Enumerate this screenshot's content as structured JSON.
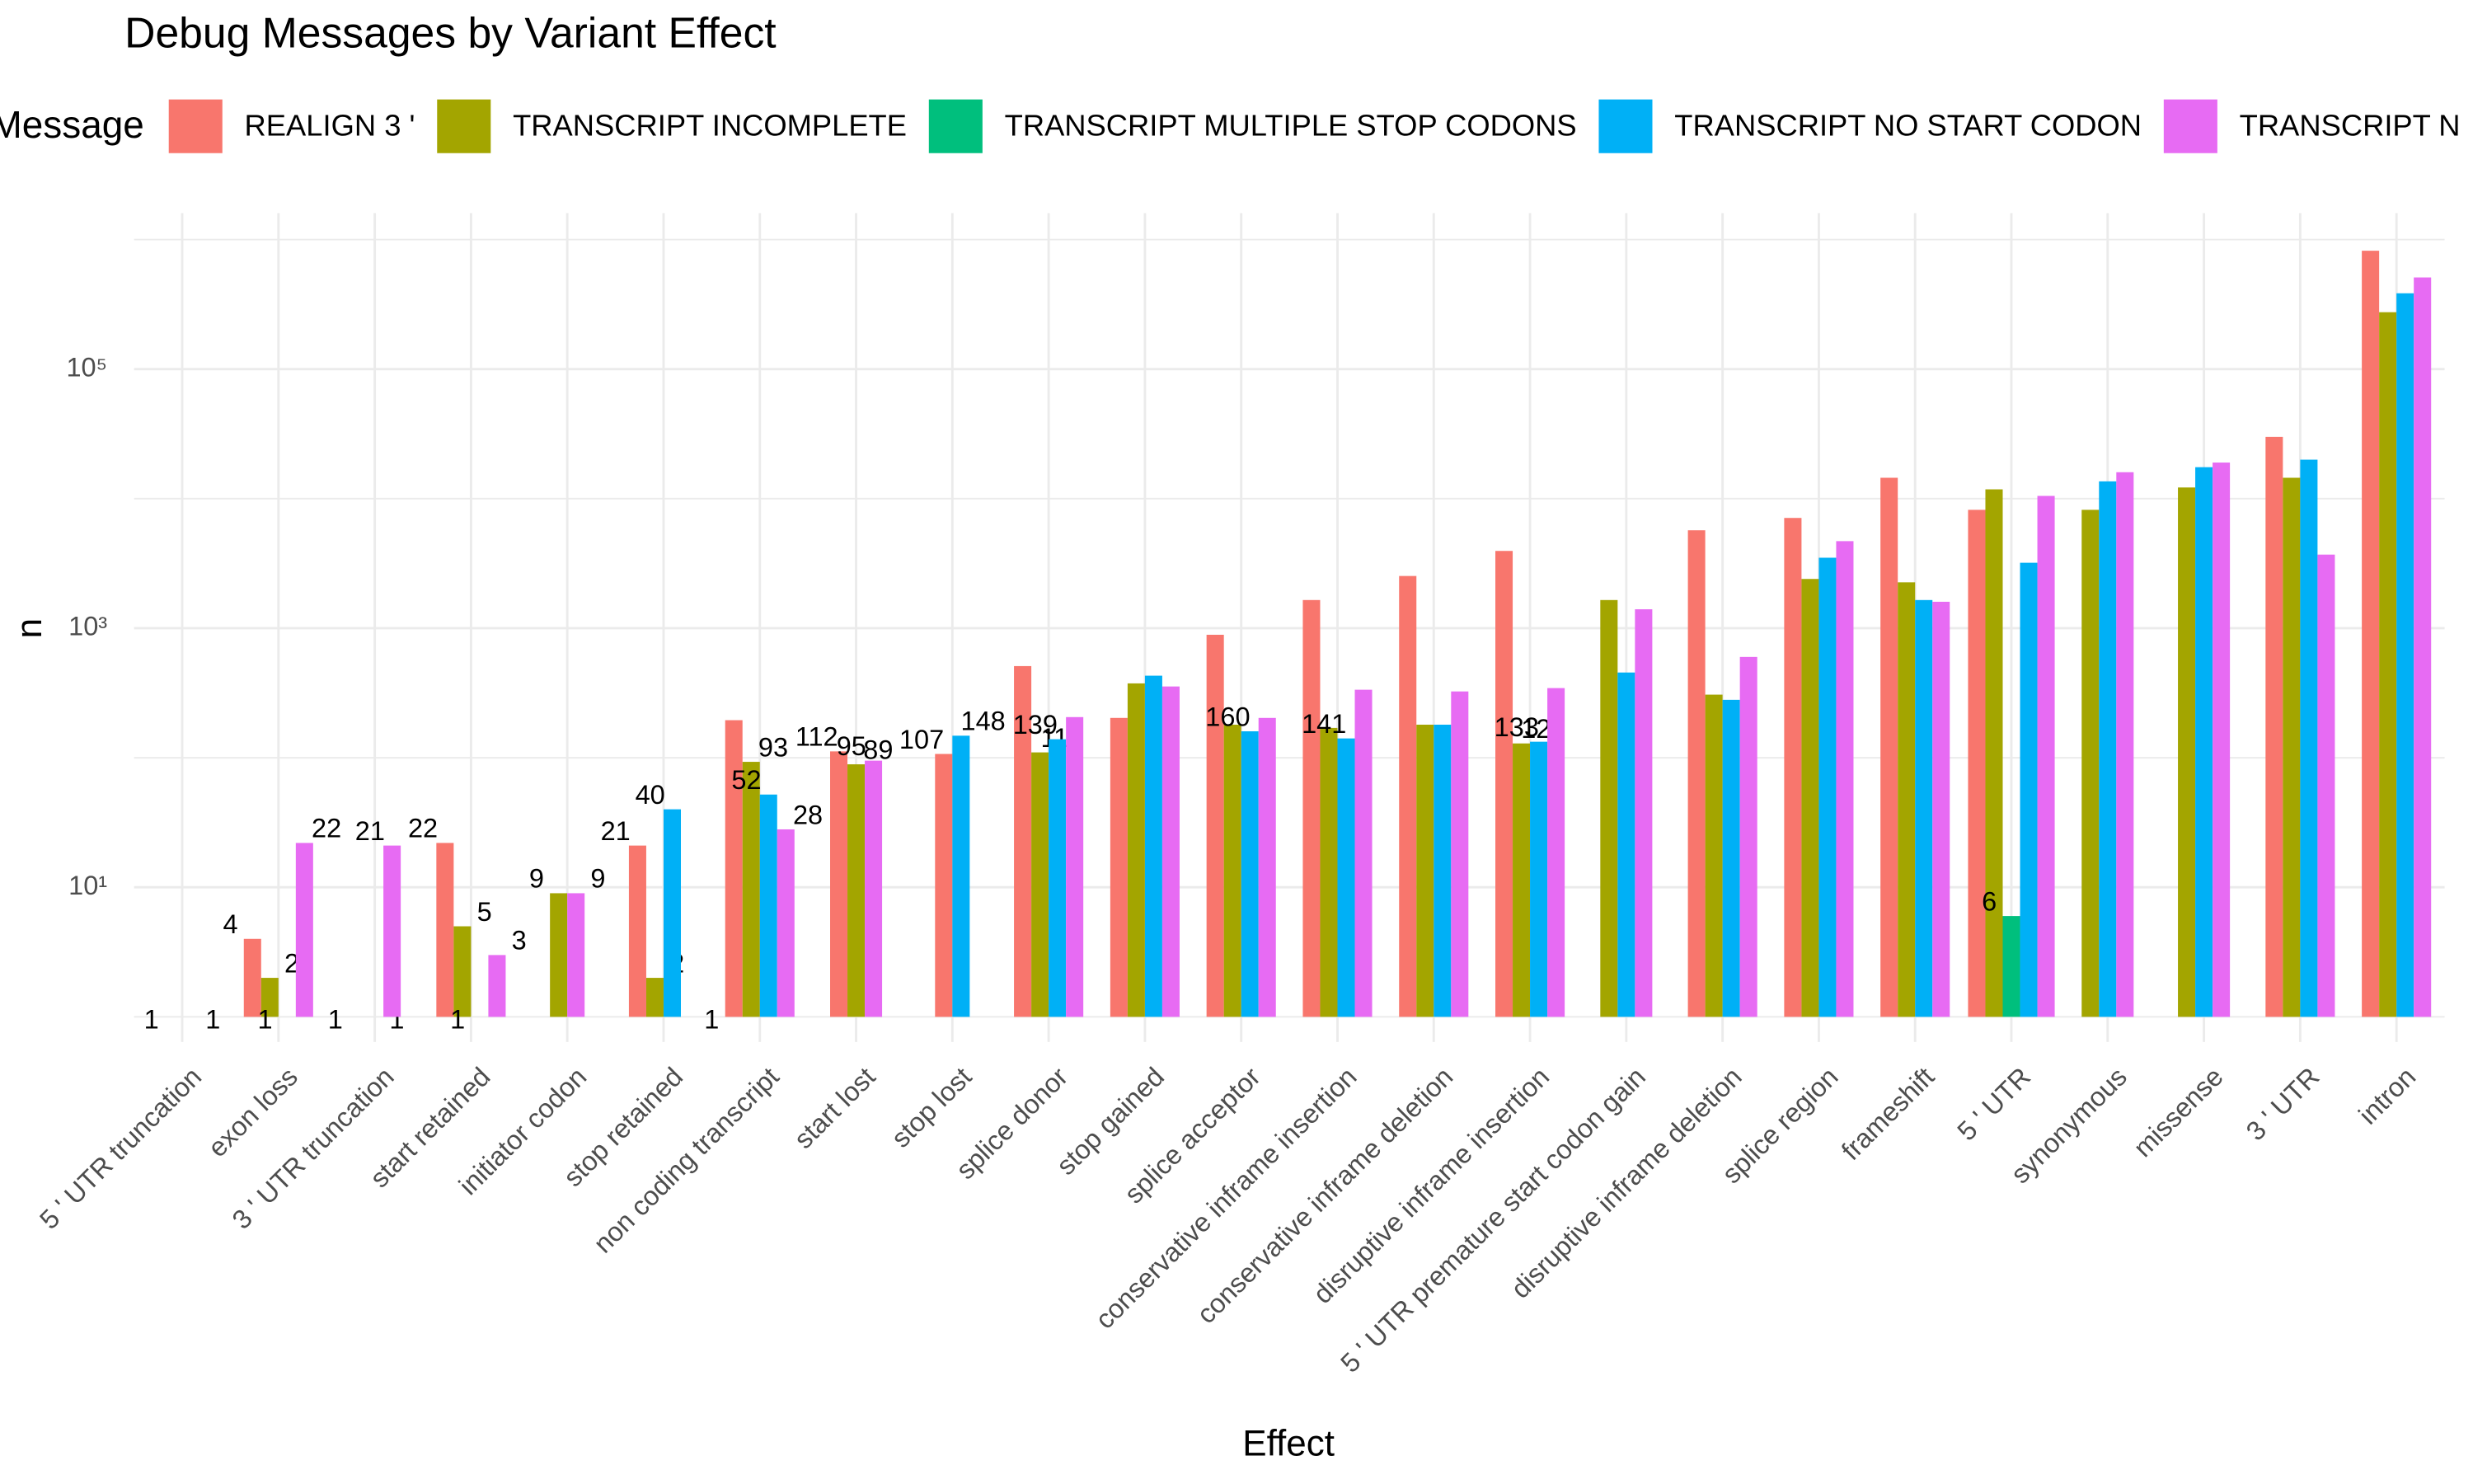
{
  "chart_data": {
    "type": "grouped-bar",
    "title": "Debug Messages by Variant Effect",
    "x_label": "Effect",
    "y_label": "n",
    "legend_title": "Message",
    "log_y": true,
    "grid": true,
    "legend_position": "top",
    "categories": [
      "5 ' UTR truncation",
      "exon loss",
      "3 ' UTR truncation",
      "start retained",
      "initiator codon",
      "stop retained",
      "non coding transcript",
      "start lost",
      "stop lost",
      "splice donor",
      "stop gained",
      "splice acceptor",
      "conservative inframe insertion",
      "conservative inframe deletion",
      "disruptive inframe insertion",
      "5 ' UTR premature start codon gain",
      "disruptive inframe deletion",
      "splice region",
      "frameshift",
      "5 ' UTR",
      "synonymous",
      "missense",
      "3 ' UTR",
      "intron"
    ],
    "ylim": [
      0.64,
      1600000
    ],
    "yticks": [
      {
        "value": 10,
        "label": "10¹"
      },
      {
        "value": 1000,
        "label": "10³"
      },
      {
        "value": 100000,
        "label": "10⁵"
      }
    ],
    "minor_yticks": [
      1,
      100,
      10000,
      1000000
    ],
    "series": [
      {
        "name": "REALIGN 3 '",
        "color": "#F8766D",
        "values": [
          1,
          4,
          1,
          22,
          null,
          21,
          195,
          112,
          107,
          510,
          203,
          890,
          1650,
          2530,
          3950,
          null,
          5700,
          7100,
          14500,
          8200,
          null,
          null,
          30000,
          820000
        ],
        "value_labels": [
          "1",
          "4",
          "1",
          "22",
          null,
          "21",
          null,
          "112",
          "107",
          null,
          null,
          null,
          null,
          null,
          null,
          null,
          null,
          null,
          null,
          null,
          null,
          null,
          null,
          null
        ]
      },
      {
        "name": "TRANSCRIPT INCOMPLETE",
        "color": "#A3A500",
        "values": [
          null,
          2,
          1,
          5,
          9,
          2,
          93,
          89,
          null,
          110,
          375,
          180,
          170,
          180,
          129,
          1650,
          307,
          2400,
          2260,
          11800,
          8200,
          12200,
          14500,
          275000
        ],
        "value_labels": [
          null,
          "2",
          "1",
          "5",
          "9",
          "2",
          "93",
          "89",
          null,
          "110",
          null,
          null,
          null,
          null,
          "129",
          null,
          null,
          null,
          null,
          null,
          null,
          null,
          null,
          null
        ]
      },
      {
        "name": "TRANSCRIPT MULTIPLE STOP CODONS",
        "color": "#00BF7D",
        "values": [
          null,
          null,
          null,
          null,
          null,
          null,
          null,
          null,
          null,
          null,
          null,
          null,
          null,
          null,
          null,
          null,
          null,
          null,
          null,
          6,
          null,
          null,
          null,
          null
        ],
        "value_labels": [
          null,
          null,
          null,
          null,
          null,
          null,
          null,
          null,
          null,
          null,
          null,
          null,
          null,
          null,
          null,
          null,
          null,
          null,
          null,
          "6",
          null,
          null,
          null,
          null
        ]
      },
      {
        "name": "TRANSCRIPT NO START CODON",
        "color": "#00B0F6",
        "values": [
          null,
          1,
          null,
          1,
          null,
          40,
          52,
          null,
          148,
          139,
          430,
          160,
          141,
          180,
          133,
          455,
          280,
          3500,
          1650,
          3200,
          13600,
          17500,
          20000,
          385000
        ],
        "value_labels": [
          null,
          "1",
          null,
          "1",
          null,
          "40",
          "52",
          null,
          "148",
          "139",
          null,
          "160",
          "141",
          null,
          "133",
          null,
          null,
          null,
          null,
          null,
          null,
          null,
          null,
          null
        ]
      },
      {
        "name": "TRANSCRIPT N",
        "color": "#E76BF3",
        "values": [
          1,
          22,
          21,
          3,
          9,
          1,
          28,
          95,
          null,
          206,
          355,
          203,
          335,
          325,
          345,
          1400,
          600,
          4700,
          1600,
          10500,
          16000,
          19000,
          3700,
          510000
        ],
        "value_labels": [
          "1",
          "22",
          "21",
          "3",
          "9",
          "1",
          "28",
          "95",
          null,
          null,
          null,
          null,
          null,
          null,
          null,
          null,
          null,
          null,
          null,
          null,
          null,
          null,
          null,
          null
        ]
      }
    ]
  }
}
